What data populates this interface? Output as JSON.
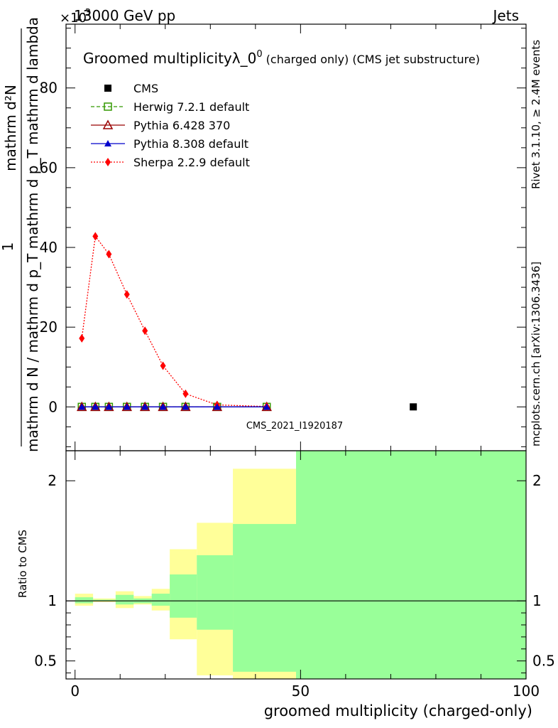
{
  "header": {
    "left": "13000 GeV pp",
    "right": "Jets",
    "exponent_label": "×10",
    "exponent_value": "-3"
  },
  "side_labels": {
    "rivet": "Rivet 3.1.10, ≥ 2.4M events",
    "mcplots": "mcplots.cern.ch [arXiv:1306.3436]"
  },
  "watermark": "CMS_2021_I1920187",
  "chart_data": [
    {
      "type": "line",
      "title_main": "Groomed multiplicityλ_0",
      "title_sup": "0",
      "title_tail": " (charged only) (CMS jet substructure)",
      "ylabel_numerator": "mathrm d²N",
      "ylabel_denominator": "mathrm d N / mathrm d p_T mathrm d p_T mathrm d lambda",
      "ylabel_one": "1",
      "xlim": [
        -2,
        100
      ],
      "ylim": [
        -11,
        96
      ],
      "yticks": [
        0,
        20,
        40,
        60,
        80
      ],
      "legend_position": "top-left",
      "series": [
        {
          "name": "CMS",
          "color": "#000000",
          "marker": "filled-square",
          "line": "none",
          "x": [
            75
          ],
          "y": [
            0
          ]
        },
        {
          "name": "Herwig 7.2.1 default",
          "color": "#339900",
          "marker": "open-square",
          "line": "dashed",
          "x": [
            1.5,
            4.5,
            7.5,
            11.5,
            15.5,
            19.5,
            24.5,
            31.5,
            42.5
          ],
          "y": [
            0,
            0,
            0,
            0,
            0,
            0,
            0,
            0,
            0
          ]
        },
        {
          "name": "Pythia 6.428 370",
          "color": "#990000",
          "marker": "open-triangle",
          "line": "solid",
          "x": [
            1.5,
            4.5,
            7.5,
            11.5,
            15.5,
            19.5,
            24.5,
            31.5,
            42.5
          ],
          "y": [
            0,
            0,
            0,
            0,
            0,
            0,
            0,
            0,
            0
          ]
        },
        {
          "name": "Pythia 8.308 default",
          "color": "#0000cc",
          "marker": "filled-triangle",
          "line": "solid",
          "x": [
            1.5,
            4.5,
            7.5,
            11.5,
            15.5,
            19.5,
            24.5,
            31.5,
            42.5
          ],
          "y": [
            0,
            0,
            0,
            0,
            0,
            0,
            0,
            0,
            0
          ]
        },
        {
          "name": "Sherpa 2.2.9 default",
          "color": "#ff0000",
          "marker": "filled-diamond",
          "line": "dotted",
          "x": [
            1.5,
            4.5,
            7.5,
            11.5,
            15.5,
            19.5,
            24.5,
            31.5,
            42.5
          ],
          "y": [
            17.2,
            42.8,
            38.3,
            28.2,
            19.1,
            10.3,
            3.3,
            0.5,
            0.1
          ]
        }
      ]
    },
    {
      "type": "area",
      "ylabel": "Ratio to CMS",
      "xlabel": "groomed multiplicity (charged-only)",
      "xlim": [
        -2,
        100
      ],
      "ylim": [
        0.35,
        2.25
      ],
      "yticks": [
        0.5,
        1,
        2
      ],
      "xticks": [
        0,
        50,
        100
      ],
      "reference_line": 1,
      "bands": [
        {
          "name": "stat+syst",
          "color": "#ffff99",
          "bins": [
            {
              "x0": 0,
              "x1": 4,
              "lo": 0.96,
              "hi": 1.06
            },
            {
              "x0": 4,
              "x1": 9,
              "lo": 0.99,
              "hi": 1.02
            },
            {
              "x0": 9,
              "x1": 13,
              "lo": 0.94,
              "hi": 1.08
            },
            {
              "x0": 13,
              "x1": 17,
              "lo": 0.97,
              "hi": 1.04
            },
            {
              "x0": 17,
              "x1": 21,
              "lo": 0.92,
              "hi": 1.1
            },
            {
              "x0": 21,
              "x1": 27,
              "lo": 0.68,
              "hi": 1.43
            },
            {
              "x0": 27,
              "x1": 35,
              "lo": 0.38,
              "hi": 1.65
            },
            {
              "x0": 35,
              "x1": 49,
              "lo": 0.35,
              "hi": 2.1
            },
            {
              "x0": 49,
              "x1": 100,
              "lo": 0.35,
              "hi": 2.25
            }
          ]
        },
        {
          "name": "stat",
          "color": "#99ff99",
          "bins": [
            {
              "x0": 0,
              "x1": 4,
              "lo": 0.98,
              "hi": 1.03
            },
            {
              "x0": 4,
              "x1": 9,
              "lo": 1.0,
              "hi": 1.01
            },
            {
              "x0": 9,
              "x1": 13,
              "lo": 0.97,
              "hi": 1.05
            },
            {
              "x0": 13,
              "x1": 17,
              "lo": 0.98,
              "hi": 1.02
            },
            {
              "x0": 17,
              "x1": 21,
              "lo": 0.96,
              "hi": 1.06
            },
            {
              "x0": 21,
              "x1": 27,
              "lo": 0.86,
              "hi": 1.22
            },
            {
              "x0": 27,
              "x1": 35,
              "lo": 0.76,
              "hi": 1.38
            },
            {
              "x0": 35,
              "x1": 49,
              "lo": 0.41,
              "hi": 1.64
            },
            {
              "x0": 49,
              "x1": 100,
              "lo": 0.35,
              "hi": 2.25
            }
          ]
        }
      ]
    }
  ]
}
